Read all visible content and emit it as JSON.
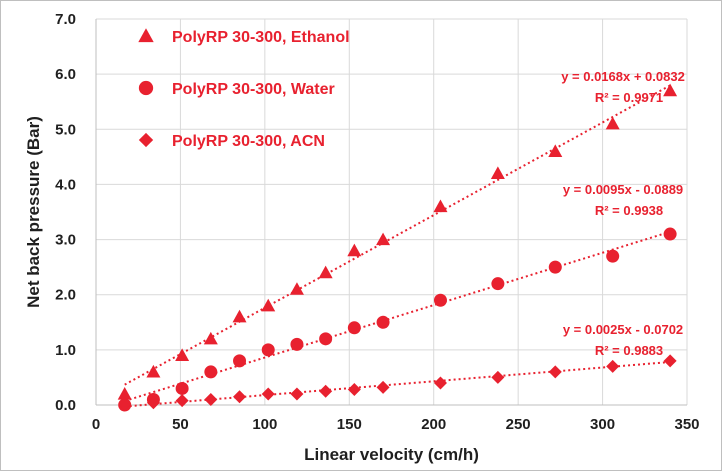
{
  "chart_data": {
    "type": "scatter",
    "xlabel": "Linear velocity (cm/h)",
    "ylabel": "Net back pressure (Bar)",
    "xlim": [
      0,
      350
    ],
    "ylim": [
      0,
      7
    ],
    "x_ticks": [
      "0",
      "50",
      "100",
      "150",
      "200",
      "250",
      "300",
      "350"
    ],
    "y_ticks": [
      "0.0",
      "1.0",
      "2.0",
      "3.0",
      "4.0",
      "5.0",
      "6.0",
      "7.0"
    ],
    "grid": true,
    "legend_position": "top-left",
    "color": "#e8212f",
    "series": [
      {
        "name": "PolyRP 30-300, Ethanol",
        "marker": "triangle",
        "x": [
          17,
          34,
          51,
          68,
          85,
          102,
          119,
          136,
          153,
          170,
          204,
          238,
          272,
          306,
          340
        ],
        "y": [
          0.2,
          0.6,
          0.9,
          1.2,
          1.6,
          1.8,
          2.1,
          2.4,
          2.8,
          3.0,
          3.6,
          4.2,
          4.6,
          5.1,
          5.7
        ],
        "trendline": {
          "slope": 0.0168,
          "intercept": 0.0832
        },
        "equation": "y = 0.0168x + 0.0832",
        "r2": "R² = 0.9971"
      },
      {
        "name": "PolyRP 30-300, Water",
        "marker": "circle",
        "x": [
          17,
          34,
          51,
          68,
          85,
          102,
          119,
          136,
          153,
          170,
          204,
          238,
          272,
          306,
          340
        ],
        "y": [
          0.0,
          0.1,
          0.3,
          0.6,
          0.8,
          1.0,
          1.1,
          1.2,
          1.4,
          1.5,
          1.9,
          2.2,
          2.5,
          2.7,
          3.1
        ],
        "trendline": {
          "slope": 0.0095,
          "intercept": -0.0889
        },
        "equation": "y = 0.0095x - 0.0889",
        "r2": "R² = 0.9938"
      },
      {
        "name": "PolyRP 30-300, ACN",
        "marker": "diamond",
        "x": [
          17,
          34,
          51,
          68,
          85,
          102,
          119,
          136,
          153,
          170,
          204,
          238,
          272,
          306,
          340
        ],
        "y": [
          0.02,
          0.04,
          0.08,
          0.1,
          0.15,
          0.2,
          0.2,
          0.25,
          0.28,
          0.32,
          0.4,
          0.5,
          0.6,
          0.7,
          0.8
        ],
        "trendline": {
          "slope": 0.0025,
          "intercept": -0.0702
        },
        "equation": "y = 0.0025x - 0.0702",
        "r2": "R² = 0.9883"
      }
    ]
  }
}
